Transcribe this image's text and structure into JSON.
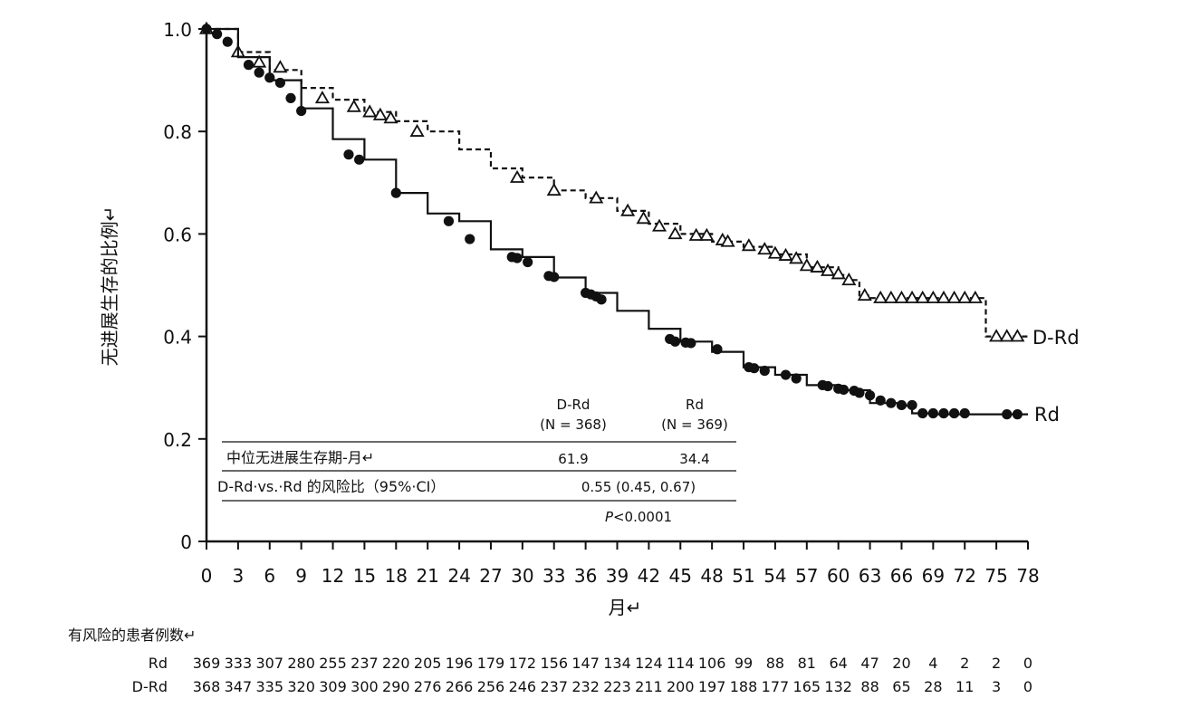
{
  "chart_data": {
    "type": "line",
    "subtype": "kaplan-meier step curve",
    "ylabel": "无进展生存的比例↵",
    "xlabel": "月↵",
    "xlim": [
      0,
      78
    ],
    "ylim": [
      0,
      1.0
    ],
    "x_ticks": [
      "0",
      "3",
      "6",
      "9",
      "12",
      "15",
      "18",
      "21",
      "24",
      "27",
      "30",
      "33",
      "36",
      "39",
      "42",
      "45",
      "48",
      "51",
      "54",
      "57",
      "60",
      "63",
      "66",
      "69",
      "72",
      "75",
      "78"
    ],
    "y_ticks": [
      "0",
      "0.2",
      "0.4",
      "0.6",
      "0.8",
      "1.0"
    ],
    "grid": false,
    "series": [
      {
        "name": "D-Rd",
        "line_style": "dashed",
        "marker": "open-triangle",
        "color": "#111111",
        "points": [
          [
            0,
            1.0
          ],
          [
            3,
            0.955
          ],
          [
            6,
            0.92
          ],
          [
            9,
            0.885
          ],
          [
            12,
            0.862
          ],
          [
            15,
            0.838
          ],
          [
            18,
            0.82
          ],
          [
            21,
            0.8
          ],
          [
            24,
            0.765
          ],
          [
            27,
            0.728
          ],
          [
            30,
            0.71
          ],
          [
            33,
            0.685
          ],
          [
            36,
            0.67
          ],
          [
            39,
            0.645
          ],
          [
            42,
            0.62
          ],
          [
            45,
            0.6
          ],
          [
            48,
            0.585
          ],
          [
            51,
            0.575
          ],
          [
            54,
            0.56
          ],
          [
            57,
            0.535
          ],
          [
            60,
            0.52
          ],
          [
            61,
            0.51
          ],
          [
            62,
            0.48
          ],
          [
            63,
            0.475
          ],
          [
            66,
            0.475
          ],
          [
            69,
            0.475
          ],
          [
            72,
            0.475
          ],
          [
            73.5,
            0.475
          ],
          [
            74,
            0.4
          ],
          [
            78,
            0.4
          ]
        ],
        "censor_marks": [
          [
            0,
            1.0
          ],
          [
            3,
            0.955
          ],
          [
            5,
            0.935
          ],
          [
            7,
            0.925
          ],
          [
            11,
            0.865
          ],
          [
            14,
            0.848
          ],
          [
            15.5,
            0.838
          ],
          [
            16.5,
            0.832
          ],
          [
            17.5,
            0.826
          ],
          [
            20,
            0.8
          ],
          [
            29.5,
            0.71
          ],
          [
            33,
            0.685
          ],
          [
            37,
            0.67
          ],
          [
            40,
            0.645
          ],
          [
            41.5,
            0.63
          ],
          [
            43,
            0.615
          ],
          [
            44.5,
            0.6
          ],
          [
            46.5,
            0.597
          ],
          [
            47.5,
            0.597
          ],
          [
            49,
            0.588
          ],
          [
            49.5,
            0.585
          ],
          [
            51.5,
            0.577
          ],
          [
            53,
            0.57
          ],
          [
            54,
            0.562
          ],
          [
            55,
            0.558
          ],
          [
            56,
            0.552
          ],
          [
            57,
            0.538
          ],
          [
            58,
            0.535
          ],
          [
            59,
            0.528
          ],
          [
            60,
            0.522
          ],
          [
            61,
            0.51
          ],
          [
            62.5,
            0.48
          ],
          [
            64,
            0.475
          ],
          [
            65,
            0.475
          ],
          [
            66,
            0.475
          ],
          [
            67,
            0.475
          ],
          [
            68,
            0.475
          ],
          [
            69,
            0.475
          ],
          [
            70,
            0.475
          ],
          [
            71,
            0.475
          ],
          [
            72,
            0.475
          ],
          [
            73,
            0.475
          ],
          [
            75,
            0.4
          ],
          [
            76,
            0.4
          ],
          [
            77,
            0.4
          ]
        ]
      },
      {
        "name": "Rd",
        "line_style": "solid",
        "marker": "filled-circle",
        "color": "#111111",
        "points": [
          [
            0,
            1.0
          ],
          [
            3,
            0.945
          ],
          [
            6,
            0.9
          ],
          [
            9,
            0.845
          ],
          [
            12,
            0.785
          ],
          [
            15,
            0.745
          ],
          [
            18,
            0.68
          ],
          [
            21,
            0.64
          ],
          [
            24,
            0.625
          ],
          [
            27,
            0.57
          ],
          [
            30,
            0.555
          ],
          [
            33,
            0.515
          ],
          [
            36,
            0.485
          ],
          [
            39,
            0.45
          ],
          [
            42,
            0.415
          ],
          [
            45,
            0.39
          ],
          [
            48,
            0.37
          ],
          [
            51,
            0.34
          ],
          [
            54,
            0.325
          ],
          [
            57,
            0.305
          ],
          [
            60,
            0.295
          ],
          [
            63,
            0.27
          ],
          [
            66,
            0.265
          ],
          [
            67,
            0.25
          ],
          [
            69,
            0.248
          ],
          [
            72,
            0.248
          ],
          [
            75,
            0.248
          ],
          [
            78,
            0.248
          ]
        ],
        "censor_marks": [
          [
            0,
            1.0
          ],
          [
            1,
            0.99
          ],
          [
            2,
            0.975
          ],
          [
            4,
            0.93
          ],
          [
            5,
            0.915
          ],
          [
            6,
            0.905
          ],
          [
            7,
            0.895
          ],
          [
            8,
            0.865
          ],
          [
            9,
            0.84
          ],
          [
            13.5,
            0.755
          ],
          [
            14.5,
            0.745
          ],
          [
            18,
            0.68
          ],
          [
            23,
            0.625
          ],
          [
            25,
            0.59
          ],
          [
            29,
            0.555
          ],
          [
            29.5,
            0.553
          ],
          [
            30.5,
            0.545
          ],
          [
            32.5,
            0.518
          ],
          [
            33,
            0.516
          ],
          [
            36,
            0.485
          ],
          [
            36.5,
            0.482
          ],
          [
            37,
            0.478
          ],
          [
            37.5,
            0.472
          ],
          [
            44,
            0.395
          ],
          [
            44.5,
            0.39
          ],
          [
            45.5,
            0.388
          ],
          [
            46,
            0.387
          ],
          [
            48.5,
            0.375
          ],
          [
            51.5,
            0.34
          ],
          [
            52,
            0.338
          ],
          [
            53,
            0.333
          ],
          [
            55,
            0.325
          ],
          [
            56,
            0.318
          ],
          [
            58.5,
            0.305
          ],
          [
            59,
            0.303
          ],
          [
            60,
            0.298
          ],
          [
            60.5,
            0.296
          ],
          [
            61.5,
            0.294
          ],
          [
            62,
            0.29
          ],
          [
            63,
            0.285
          ],
          [
            64,
            0.275
          ],
          [
            65,
            0.27
          ],
          [
            66,
            0.266
          ],
          [
            67,
            0.266
          ],
          [
            68,
            0.25
          ],
          [
            69,
            0.25
          ],
          [
            70,
            0.25
          ],
          [
            71,
            0.25
          ],
          [
            72,
            0.25
          ],
          [
            76,
            0.248
          ],
          [
            77,
            0.248
          ]
        ]
      }
    ],
    "embedded_table": {
      "col_headers": [
        {
          "name": "D-Rd",
          "n": "(N = 368)"
        },
        {
          "name": "Rd",
          "n": "(N = 369)"
        }
      ],
      "rows": [
        {
          "label": "中位无进展生存期-月↵",
          "values": [
            "61.9",
            "34.4"
          ]
        },
        {
          "label": "D-Rd·vs.·Rd 的风险比（95%·CI）",
          "value": "0.55 (0.45, 0.67)"
        },
        {
          "label": "",
          "p_italic": "P",
          "p_rest": "<0.0001"
        }
      ]
    },
    "risk_table": {
      "title": "有风险的患者例数↵",
      "rows": [
        {
          "label": "Rd",
          "values": [
            "369",
            "333",
            "307",
            "280",
            "255",
            "237",
            "220",
            "205",
            "196",
            "179",
            "172",
            "156",
            "147",
            "134",
            "124",
            "114",
            "106",
            "99",
            "88",
            "81",
            "64",
            "47",
            "20",
            "4",
            "2",
            "2",
            "0"
          ]
        },
        {
          "label": "D-Rd",
          "values": [
            "368",
            "347",
            "335",
            "320",
            "309",
            "300",
            "290",
            "276",
            "266",
            "256",
            "246",
            "237",
            "232",
            "223",
            "211",
            "200",
            "197",
            "188",
            "177",
            "165",
            "132",
            "88",
            "65",
            "28",
            "11",
            "3",
            "0"
          ]
        }
      ]
    }
  }
}
